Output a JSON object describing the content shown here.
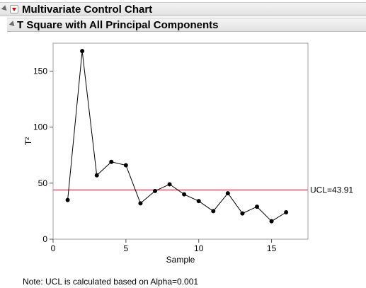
{
  "outline": {
    "main_title": "Multivariate Control Chart",
    "sub_title": "T Square with All Principal Components"
  },
  "note": "Note: UCL is calculated based on Alpha=0.001",
  "colors": {
    "ucl_line": "#e37f93",
    "series": "#000000"
  },
  "chart_data": {
    "type": "line",
    "xlabel": "Sample",
    "ylabel": "T²",
    "xlim": [
      0,
      17.5
    ],
    "ylim": [
      0,
      175
    ],
    "xticks": [
      0,
      5,
      10,
      15
    ],
    "yticks": [
      0,
      50,
      100,
      150
    ],
    "x": [
      1,
      2,
      3,
      4,
      5,
      6,
      7,
      8,
      9,
      10,
      11,
      12,
      13,
      14,
      15,
      16
    ],
    "y": [
      35,
      168,
      57,
      69,
      66,
      32,
      43,
      49,
      40,
      34,
      25,
      41,
      23,
      29,
      16,
      24
    ],
    "ucl": {
      "value": 43.91,
      "label": "UCL=43.91"
    },
    "grid": false
  }
}
